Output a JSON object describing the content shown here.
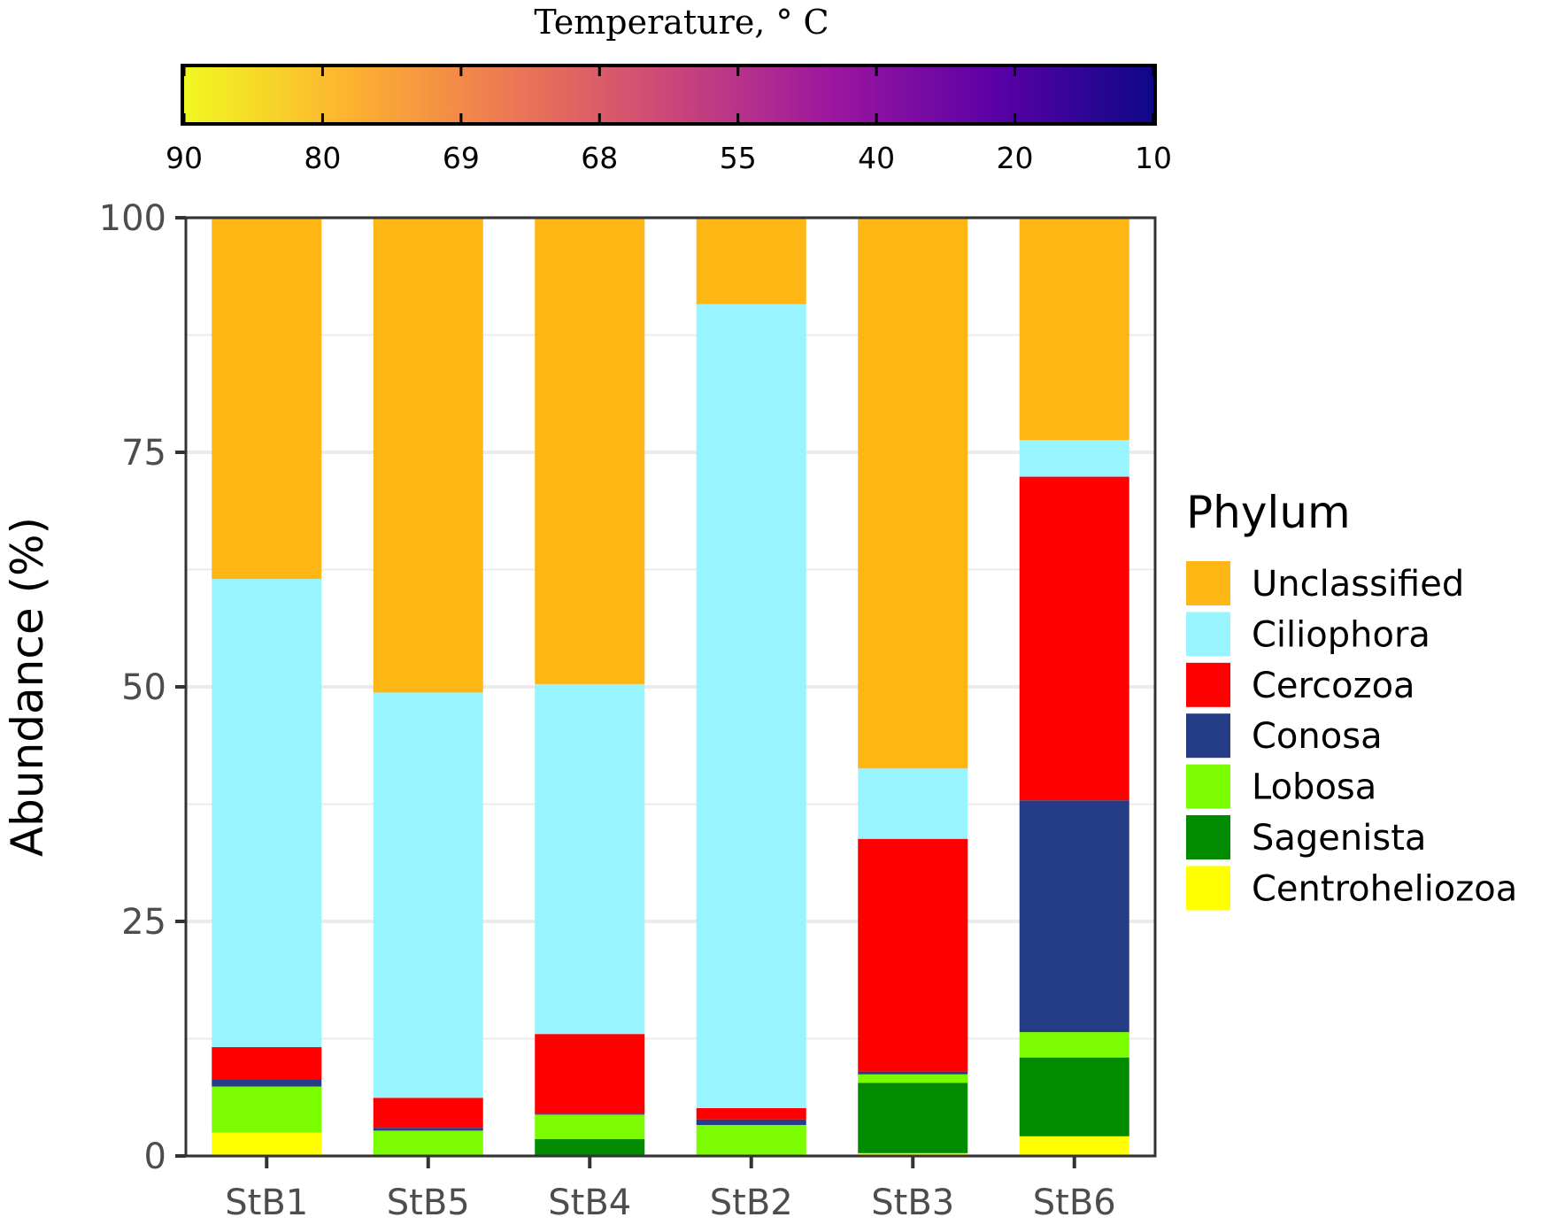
{
  "chart_data": {
    "type": "bar",
    "stacked": true,
    "title": "",
    "xlabel": "",
    "ylabel": "Abundance (%)",
    "ylim": [
      0,
      100
    ],
    "yticks": [
      0,
      25,
      50,
      75,
      100
    ],
    "grid": true,
    "legend_position": "right",
    "categories": [
      "StB1",
      "StB5",
      "StB4",
      "StB2",
      "StB3",
      "StB6"
    ],
    "series": [
      {
        "name": "Centroheliozoa",
        "color": "#FFFF00",
        "values": [
          2.5,
          0,
          0,
          0,
          0.3,
          2.1
        ]
      },
      {
        "name": "Sagenista",
        "color": "#008B00",
        "values": [
          0,
          0.1,
          1.8,
          0.1,
          7.5,
          8.4
        ]
      },
      {
        "name": "Lobosa",
        "color": "#7CFC00",
        "values": [
          4.9,
          2.6,
          2.6,
          3.2,
          0.9,
          2.7
        ]
      },
      {
        "name": "Conosa",
        "color": "#253D87",
        "values": [
          0.8,
          0.3,
          0.1,
          0.6,
          0.3,
          24.7
        ]
      },
      {
        "name": "Cercozoa",
        "color": "#FF0000",
        "values": [
          3.4,
          3.2,
          8.5,
          1.2,
          24.8,
          34.5
        ]
      },
      {
        "name": "Ciliophora",
        "color": "#98F5FF",
        "values": [
          49.9,
          43.2,
          37.3,
          85.7,
          7.5,
          3.9
        ]
      },
      {
        "name": "Unclassified",
        "color": "#FDB614",
        "values": [
          38.5,
          50.6,
          49.7,
          9.2,
          58.7,
          23.7
        ]
      }
    ],
    "legend": {
      "title": "Phylum",
      "order": [
        "Unclassified",
        "Ciliophora",
        "Cercozoa",
        "Conosa",
        "Lobosa",
        "Sagenista",
        "Centroheliozoa"
      ]
    },
    "colorbar": {
      "title": "Temperature, ° C",
      "ticks": [
        "90",
        "80",
        "69",
        "68",
        "55",
        "40",
        "20",
        "10"
      ],
      "colors": [
        "#F0F921",
        "#FDB42F",
        "#ED7953",
        "#CC4778",
        "#9C179E",
        "#5C01A6",
        "#0D0887"
      ]
    }
  }
}
